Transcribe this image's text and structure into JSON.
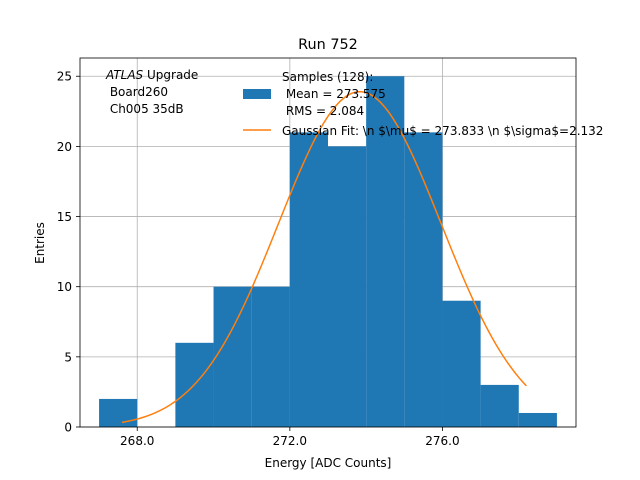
{
  "chart_data": {
    "type": "bar",
    "title": "Run 752",
    "xlabel": "Energy [ADC Counts]",
    "ylabel": "Entries",
    "xlim": [
      266.5,
      279.5
    ],
    "ylim": [
      0,
      26.3
    ],
    "grid": true,
    "xticks": [
      268.0,
      272.0,
      276.0
    ],
    "xtick_labels": [
      "268.0",
      "272.0",
      "276.0"
    ],
    "yticks": [
      0,
      5,
      10,
      15,
      20,
      25
    ],
    "ytick_labels": [
      "0",
      "5",
      "10",
      "15",
      "20",
      "25"
    ],
    "histogram": {
      "name": "Samples (128):\n Mean = 273.575\n RMS = 2.084",
      "color": "#1f77b4",
      "bin_edges": [
        267,
        268,
        269,
        270,
        271,
        272,
        273,
        274,
        275,
        276,
        277,
        278,
        279
      ],
      "counts": [
        2,
        0,
        6,
        10,
        10,
        21,
        20,
        25,
        21,
        9,
        3,
        1
      ]
    },
    "fit": {
      "name": "Gaussian Fit: \\n $\\mu$ = 273.833 \\n $\\sigma$=2.132",
      "color": "#ff7f0e",
      "mu": 273.833,
      "sigma": 2.132,
      "amplitude": 23.9,
      "x_range": [
        267.6,
        278.2
      ]
    },
    "legend_position": "top-right",
    "annotation": {
      "italic_part": "ATLAS",
      "rest_first_line": " Upgrade",
      "lines": [
        " Board260",
        " Ch005 35dB"
      ]
    }
  }
}
